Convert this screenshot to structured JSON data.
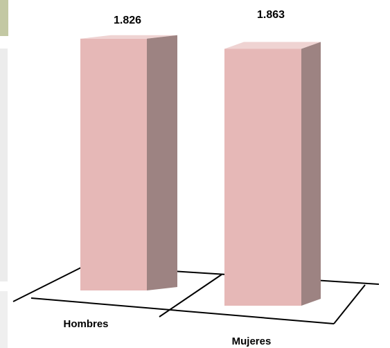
{
  "chart_data": {
    "type": "bar",
    "categories": [
      "Hombres",
      "Mujeres"
    ],
    "values": [
      1826,
      1863
    ],
    "value_labels": [
      "1.826",
      "1.863"
    ],
    "title": "",
    "xlabel": "",
    "ylabel": "",
    "style": "3d",
    "grid": false,
    "legend": "none",
    "colors": {
      "bar_front": "#e6b8b7",
      "bar_side": "#9d8382",
      "bar_top": "#efd3d2",
      "floor_line": "#000000"
    }
  },
  "panel_colors": {
    "strip_top": "#c3c8a3",
    "strip_mid": "#ececec",
    "strip_bottom": "#efefef"
  }
}
